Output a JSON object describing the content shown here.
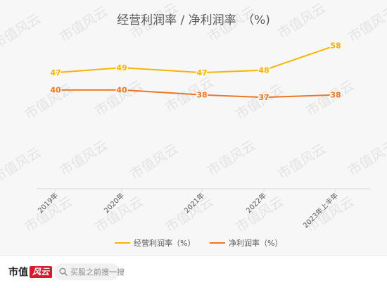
{
  "chart_data": {
    "type": "line",
    "title": "经营利润率 / 净利润率　（%)",
    "categories": [
      "2019年",
      "2020年",
      "2021年",
      "2022年",
      "2023年上半年"
    ],
    "series": [
      {
        "name": "经营利润率（%）",
        "values": [
          47,
          49,
          47,
          48,
          58
        ],
        "color": "#f7b500"
      },
      {
        "name": "净利润率（%）",
        "values": [
          40,
          40,
          38,
          37,
          38
        ],
        "color": "#ee7623"
      }
    ],
    "ylim": [
      0,
      65
    ],
    "grid": false,
    "legend": "bottom",
    "xlabel": "",
    "ylabel": ""
  },
  "watermark": {
    "text": "市值风云",
    "color": "#e3e3e3"
  },
  "bottom_bar": {
    "brand_text": "市值",
    "brand_badge": "风云",
    "search_placeholder": "买股之前搜一搜",
    "search_icon": "search-icon"
  }
}
